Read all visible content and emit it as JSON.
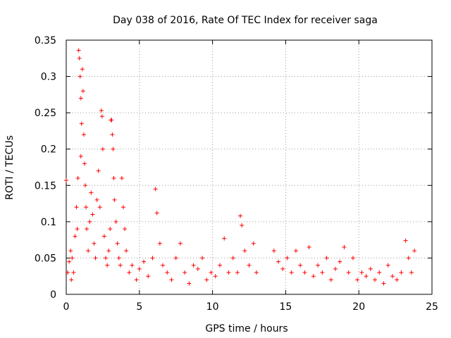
{
  "chart_data": {
    "type": "scatter",
    "title": "Day 038 of 2016, Rate Of TEC Index for receiver saga",
    "xlabel": "GPS time / hours",
    "ylabel": "ROTI / TECUs",
    "xlim": [
      0,
      25
    ],
    "ylim": [
      0,
      0.35
    ],
    "xticks": [
      "0",
      "5",
      "10",
      "15",
      "20",
      "25"
    ],
    "yticks": [
      "0",
      "0.05",
      "0.1",
      "0.15",
      "0.2",
      "0.25",
      "0.3",
      "0.35"
    ],
    "grid": true,
    "marker": "+",
    "color": "#ff0000",
    "points": [
      [
        0.0,
        0.157
      ],
      [
        0.1,
        0.03
      ],
      [
        0.2,
        0.045
      ],
      [
        0.3,
        0.06
      ],
      [
        0.35,
        0.02
      ],
      [
        0.4,
        0.05
      ],
      [
        0.5,
        0.03
      ],
      [
        0.6,
        0.08
      ],
      [
        0.7,
        0.12
      ],
      [
        0.75,
        0.09
      ],
      [
        0.8,
        0.16
      ],
      [
        0.85,
        0.336
      ],
      [
        0.9,
        0.325
      ],
      [
        0.95,
        0.3
      ],
      [
        1.0,
        0.27
      ],
      [
        1.0,
        0.19
      ],
      [
        1.05,
        0.235
      ],
      [
        1.1,
        0.31
      ],
      [
        1.15,
        0.28
      ],
      [
        1.2,
        0.22
      ],
      [
        1.25,
        0.18
      ],
      [
        1.3,
        0.15
      ],
      [
        1.35,
        0.12
      ],
      [
        1.4,
        0.09
      ],
      [
        1.5,
        0.06
      ],
      [
        1.6,
        0.1
      ],
      [
        1.7,
        0.14
      ],
      [
        1.8,
        0.11
      ],
      [
        1.9,
        0.07
      ],
      [
        2.0,
        0.05
      ],
      [
        2.1,
        0.13
      ],
      [
        2.2,
        0.17
      ],
      [
        2.3,
        0.12
      ],
      [
        2.4,
        0.253
      ],
      [
        2.45,
        0.245
      ],
      [
        2.5,
        0.2
      ],
      [
        2.6,
        0.08
      ],
      [
        2.7,
        0.05
      ],
      [
        2.8,
        0.04
      ],
      [
        2.9,
        0.06
      ],
      [
        3.0,
        0.09
      ],
      [
        3.05,
        0.24
      ],
      [
        3.1,
        0.24
      ],
      [
        3.15,
        0.22
      ],
      [
        3.2,
        0.2
      ],
      [
        3.25,
        0.16
      ],
      [
        3.3,
        0.13
      ],
      [
        3.4,
        0.1
      ],
      [
        3.5,
        0.07
      ],
      [
        3.6,
        0.05
      ],
      [
        3.7,
        0.04
      ],
      [
        3.8,
        0.16
      ],
      [
        3.9,
        0.12
      ],
      [
        4.0,
        0.09
      ],
      [
        4.1,
        0.06
      ],
      [
        4.3,
        0.03
      ],
      [
        4.5,
        0.04
      ],
      [
        4.8,
        0.02
      ],
      [
        5.0,
        0.035
      ],
      [
        5.3,
        0.045
      ],
      [
        5.6,
        0.025
      ],
      [
        5.9,
        0.05
      ],
      [
        6.1,
        0.145
      ],
      [
        6.2,
        0.112
      ],
      [
        6.4,
        0.07
      ],
      [
        6.6,
        0.04
      ],
      [
        6.9,
        0.03
      ],
      [
        7.2,
        0.02
      ],
      [
        7.5,
        0.05
      ],
      [
        7.8,
        0.07
      ],
      [
        8.1,
        0.03
      ],
      [
        8.4,
        0.015
      ],
      [
        8.7,
        0.04
      ],
      [
        9.0,
        0.035
      ],
      [
        9.3,
        0.05
      ],
      [
        9.6,
        0.02
      ],
      [
        9.9,
        0.03
      ],
      [
        10.2,
        0.025
      ],
      [
        10.5,
        0.04
      ],
      [
        10.8,
        0.077
      ],
      [
        11.1,
        0.03
      ],
      [
        11.4,
        0.05
      ],
      [
        11.7,
        0.03
      ],
      [
        11.9,
        0.108
      ],
      [
        12.0,
        0.095
      ],
      [
        12.2,
        0.06
      ],
      [
        12.5,
        0.04
      ],
      [
        12.8,
        0.07
      ],
      [
        13.0,
        0.03
      ],
      [
        14.2,
        0.06
      ],
      [
        14.5,
        0.045
      ],
      [
        14.8,
        0.035
      ],
      [
        15.1,
        0.05
      ],
      [
        15.4,
        0.03
      ],
      [
        15.7,
        0.06
      ],
      [
        16.0,
        0.04
      ],
      [
        16.3,
        0.03
      ],
      [
        16.6,
        0.065
      ],
      [
        16.9,
        0.025
      ],
      [
        17.2,
        0.04
      ],
      [
        17.5,
        0.03
      ],
      [
        17.8,
        0.05
      ],
      [
        18.1,
        0.02
      ],
      [
        18.4,
        0.035
      ],
      [
        18.7,
        0.045
      ],
      [
        19.0,
        0.065
      ],
      [
        19.3,
        0.03
      ],
      [
        19.6,
        0.05
      ],
      [
        19.9,
        0.02
      ],
      [
        20.2,
        0.03
      ],
      [
        20.5,
        0.025
      ],
      [
        20.8,
        0.035
      ],
      [
        21.1,
        0.02
      ],
      [
        21.4,
        0.03
      ],
      [
        21.7,
        0.015
      ],
      [
        22.0,
        0.04
      ],
      [
        22.3,
        0.025
      ],
      [
        22.6,
        0.02
      ],
      [
        22.9,
        0.03
      ],
      [
        23.2,
        0.074
      ],
      [
        23.4,
        0.05
      ],
      [
        23.6,
        0.03
      ],
      [
        23.8,
        0.06
      ]
    ]
  }
}
